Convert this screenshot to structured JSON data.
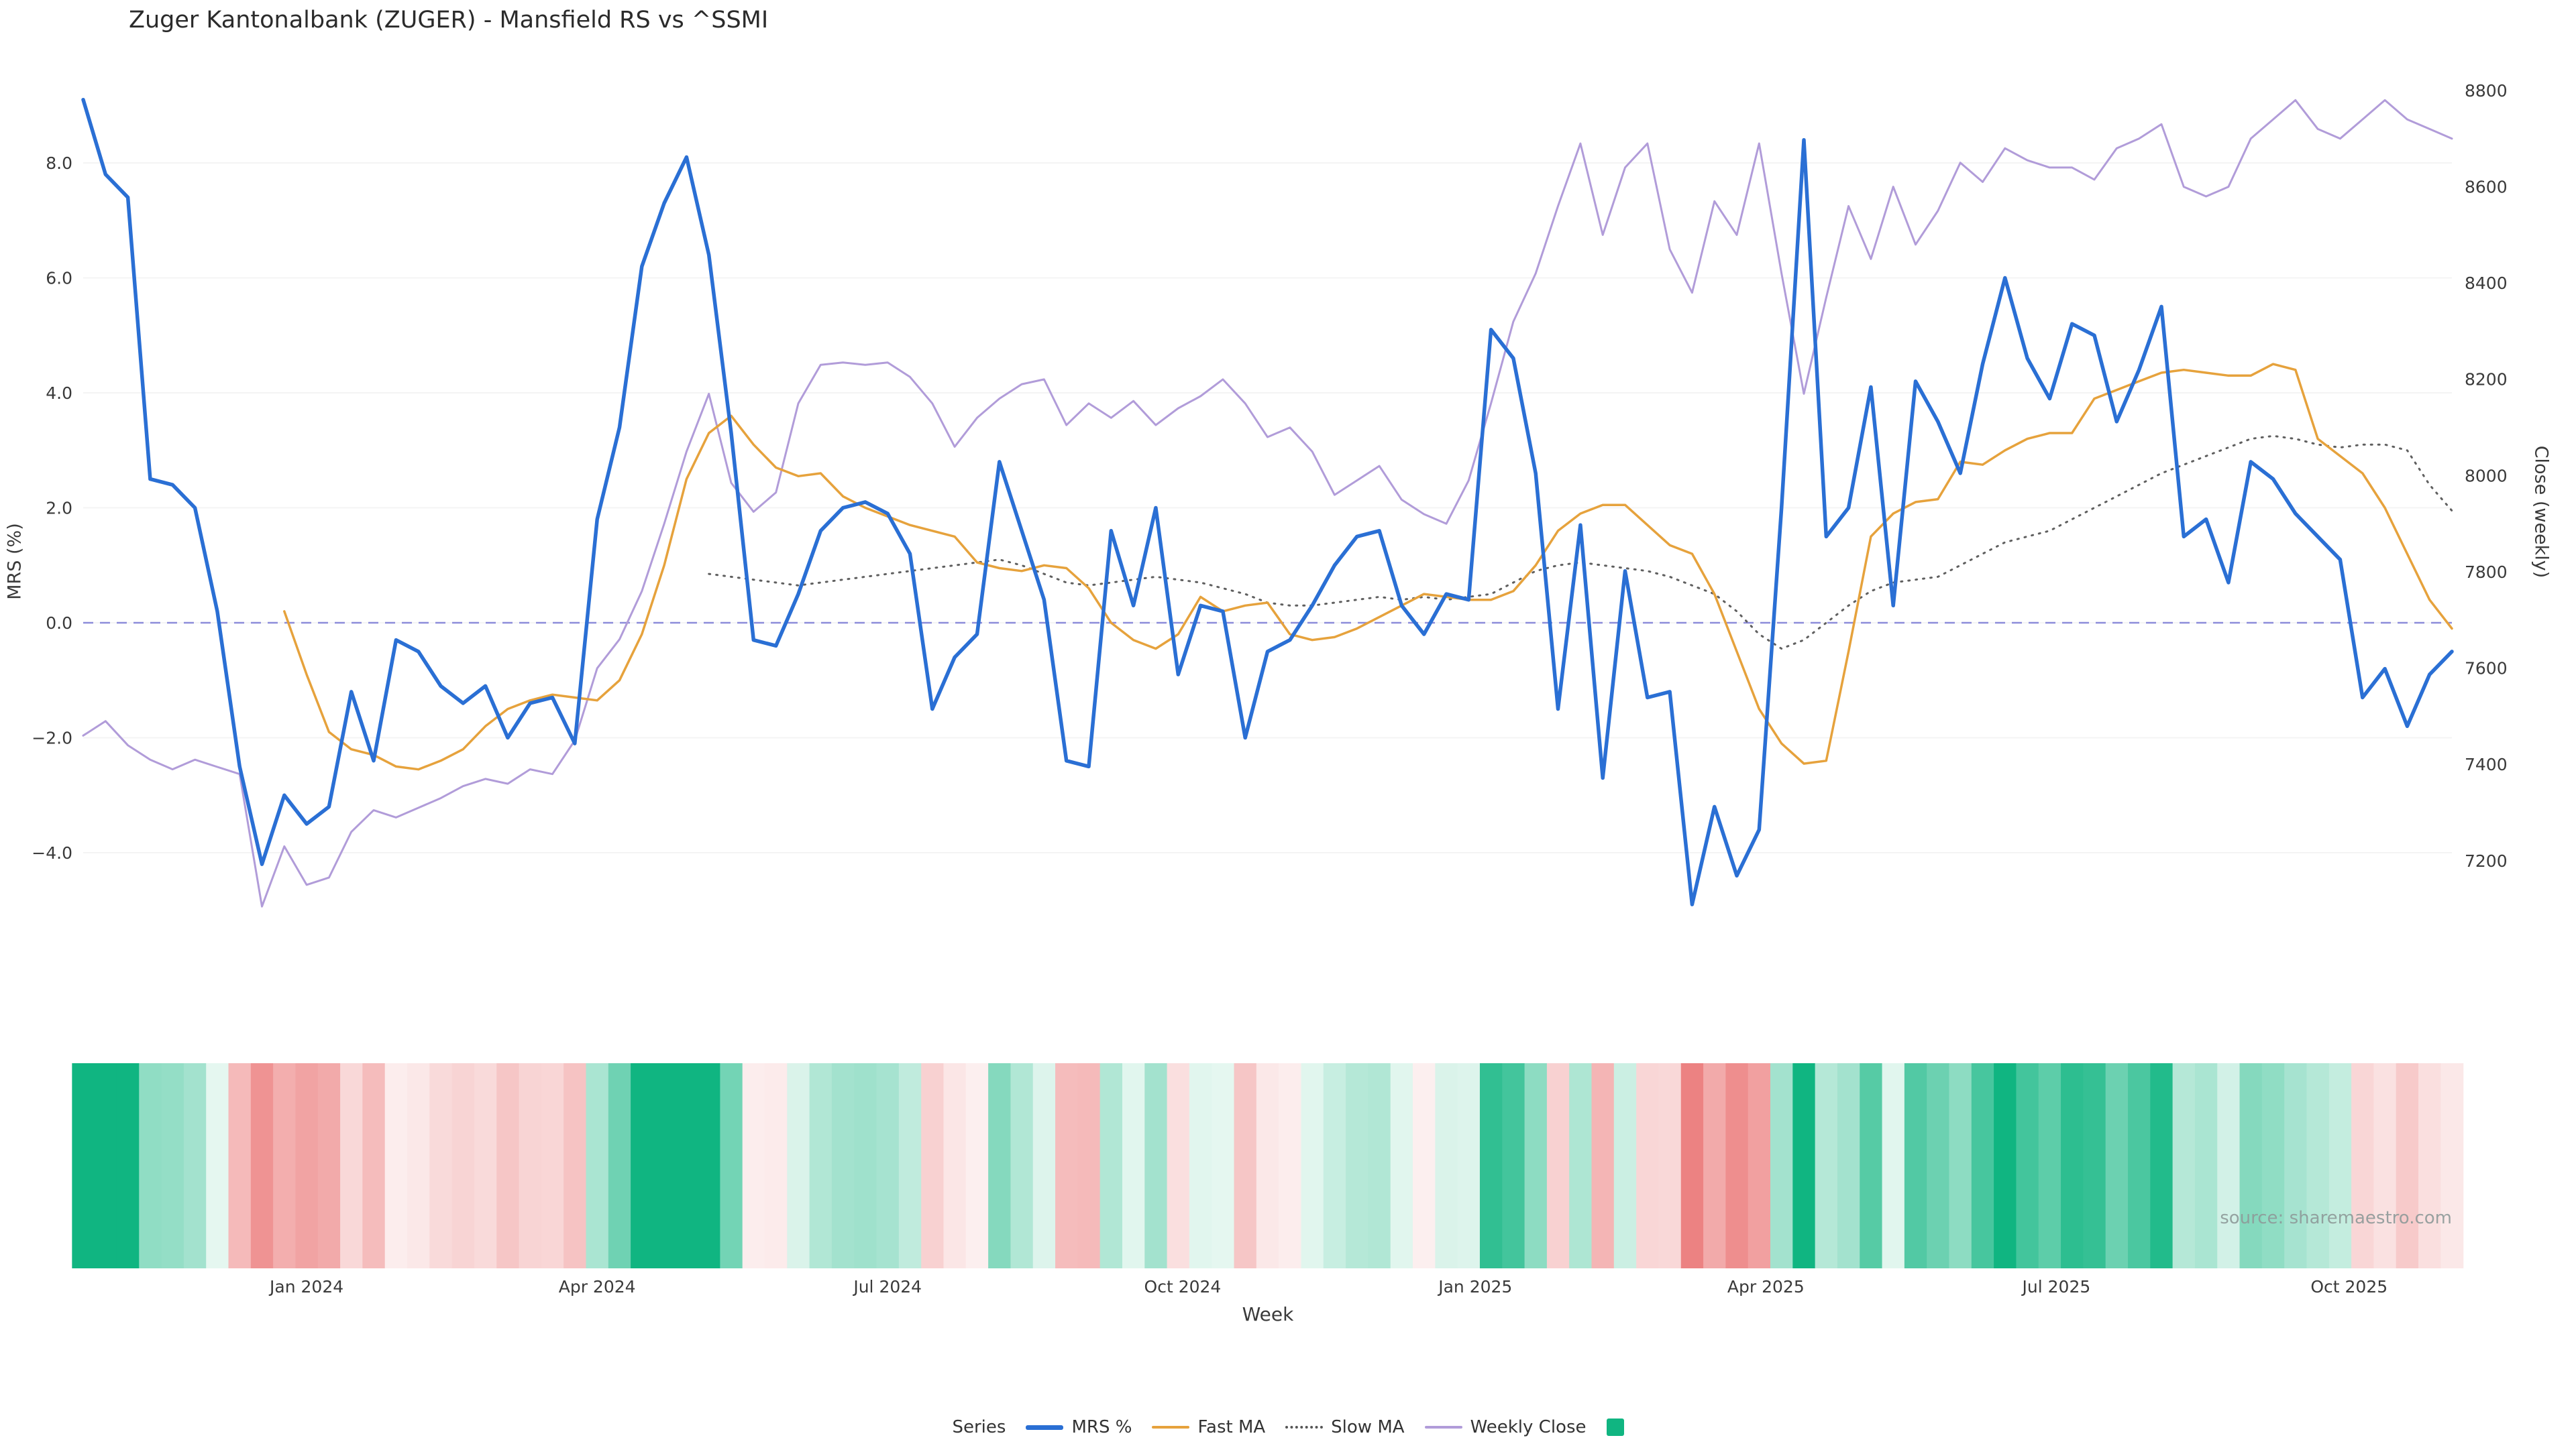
{
  "source_note": "source: sharemaestro.com",
  "legend": {
    "title": "Series",
    "items": [
      {
        "key": "mrs",
        "label": "MRS %",
        "color": "#2a6fd4",
        "style": "line-thick"
      },
      {
        "key": "fast-ma",
        "label": "Fast MA",
        "color": "#e6a23c",
        "style": "line"
      },
      {
        "key": "slow-ma",
        "label": "Slow MA",
        "color": "#555555",
        "style": "dotted"
      },
      {
        "key": "weekly-close",
        "label": "Weekly Close",
        "color": "#b19cd9",
        "style": "line"
      },
      {
        "key": "heatmap",
        "label": "",
        "color": "#10b581",
        "style": "square"
      }
    ]
  },
  "chart_data": {
    "type": "line",
    "title": "Zuger Kantonalbank (ZUGER) - Mansfield RS vs ^SSMI",
    "x_axis": {
      "label": "Week",
      "unit": "week-index",
      "n_points": 107,
      "tick_labels": [
        "Jan 2024",
        "Apr 2024",
        "Jul 2024",
        "Oct 2024",
        "Jan 2025",
        "Apr 2025",
        "Jul 2025",
        "Oct 2025"
      ],
      "tick_week_indices": [
        10,
        23,
        36,
        49.2,
        62.3,
        75.3,
        88.3,
        101.4
      ]
    },
    "y_left": {
      "label": "MRS (%)",
      "ticks": [
        8,
        6,
        4,
        2,
        0,
        -2,
        -4
      ],
      "tick_labels": [
        "8.0",
        "6.0",
        "4.0",
        "2.0",
        "0.0",
        "−2.0",
        "−4.0"
      ],
      "zero_line": 0
    },
    "y_right": {
      "label": "Close (weekly)",
      "ticks": [
        8800,
        8600,
        8400,
        8200,
        8000,
        7800,
        7600,
        7400,
        7200
      ],
      "tick_labels": [
        "8800",
        "8600",
        "8400",
        "8200",
        "8000",
        "7800",
        "7600",
        "7400",
        "7200"
      ]
    },
    "zero_line_color": "#8c8cd9",
    "grid_color": "#f4f4f4",
    "series": [
      {
        "name": "MRS %",
        "axis": "left",
        "color": "#2a6fd4",
        "width": 5.5,
        "dash": "solid",
        "values": [
          9.1,
          7.8,
          7.4,
          2.5,
          2.4,
          2.0,
          0.2,
          -2.5,
          -4.2,
          -3.0,
          -3.5,
          -3.2,
          -1.2,
          -2.4,
          -0.3,
          -0.5,
          -1.1,
          -1.4,
          -1.1,
          -2.0,
          -1.4,
          -1.3,
          -2.1,
          1.8,
          3.4,
          6.2,
          7.3,
          8.1,
          6.4,
          3.3,
          -0.3,
          -0.4,
          0.5,
          1.6,
          2.0,
          2.1,
          1.9,
          1.2,
          -1.5,
          -0.6,
          -0.2,
          2.8,
          1.6,
          0.4,
          -2.4,
          -2.5,
          1.6,
          0.3,
          2.0,
          -0.9,
          0.3,
          0.2,
          -2.0,
          -0.5,
          -0.3,
          0.3,
          1.0,
          1.5,
          1.6,
          0.3,
          -0.2,
          0.5,
          0.4,
          5.1,
          4.6,
          2.6,
          -1.5,
          1.7,
          -2.7,
          0.9,
          -1.3,
          -1.2,
          -4.9,
          -3.2,
          -4.4,
          -3.6,
          2.0,
          8.4,
          1.5,
          2.0,
          4.1,
          0.3,
          4.2,
          3.5,
          2.6,
          4.5,
          6.0,
          4.6,
          3.9,
          5.2,
          5.0,
          3.5,
          4.4,
          5.5,
          1.5,
          1.8,
          0.7,
          2.8,
          2.5,
          1.9,
          1.5,
          1.1,
          -1.3,
          -0.8,
          -1.8,
          -0.9,
          -0.5
        ]
      },
      {
        "name": "Fast MA",
        "axis": "left",
        "color": "#e6a23c",
        "width": 3.5,
        "dash": "solid",
        "values": [
          null,
          null,
          null,
          null,
          null,
          null,
          null,
          null,
          null,
          0.2,
          -0.9,
          -1.9,
          -2.2,
          -2.3,
          -2.5,
          -2.55,
          -2.4,
          -2.2,
          -1.8,
          -1.5,
          -1.35,
          -1.25,
          -1.3,
          -1.35,
          -1.0,
          -0.2,
          1.0,
          2.5,
          3.3,
          3.6,
          3.1,
          2.7,
          2.55,
          2.6,
          2.2,
          2.0,
          1.85,
          1.7,
          1.6,
          1.5,
          1.05,
          0.95,
          0.9,
          1.0,
          0.95,
          0.6,
          0.0,
          -0.3,
          -0.45,
          -0.2,
          0.45,
          0.2,
          0.3,
          0.35,
          -0.2,
          -0.3,
          -0.25,
          -0.1,
          0.1,
          0.3,
          0.5,
          0.45,
          0.4,
          0.4,
          0.55,
          1.0,
          1.6,
          1.9,
          2.05,
          2.05,
          1.7,
          1.35,
          1.2,
          0.5,
          -0.5,
          -1.5,
          -2.1,
          -2.45,
          -2.4,
          -0.5,
          1.5,
          1.9,
          2.1,
          2.15,
          2.8,
          2.75,
          3.0,
          3.2,
          3.3,
          3.3,
          3.9,
          4.05,
          4.2,
          4.35,
          4.4,
          4.35,
          4.3,
          4.3,
          4.5,
          4.4,
          3.2,
          2.9,
          2.6,
          2.0,
          1.2,
          0.4,
          -0.1
        ]
      },
      {
        "name": "Slow MA",
        "axis": "left",
        "color": "#5f5f5f",
        "width": 3,
        "dash": "dotted",
        "values": [
          null,
          null,
          null,
          null,
          null,
          null,
          null,
          null,
          null,
          null,
          null,
          null,
          null,
          null,
          null,
          null,
          null,
          null,
          null,
          null,
          null,
          null,
          null,
          null,
          null,
          null,
          null,
          null,
          0.85,
          0.8,
          0.75,
          0.7,
          0.65,
          0.7,
          0.75,
          0.8,
          0.85,
          0.9,
          0.95,
          1.0,
          1.05,
          1.1,
          1.0,
          0.85,
          0.7,
          0.65,
          0.7,
          0.75,
          0.8,
          0.75,
          0.7,
          0.6,
          0.5,
          0.35,
          0.3,
          0.3,
          0.35,
          0.4,
          0.45,
          0.4,
          0.45,
          0.4,
          0.45,
          0.5,
          0.7,
          0.9,
          1.0,
          1.05,
          1.0,
          0.95,
          0.9,
          0.8,
          0.65,
          0.5,
          0.2,
          -0.2,
          -0.45,
          -0.3,
          0.0,
          0.3,
          0.55,
          0.7,
          0.75,
          0.8,
          1.0,
          1.2,
          1.4,
          1.5,
          1.6,
          1.8,
          2.0,
          2.2,
          2.4,
          2.6,
          2.75,
          2.9,
          3.05,
          3.2,
          3.25,
          3.2,
          3.1,
          3.05,
          3.1,
          3.1,
          3.0,
          2.4,
          1.95
        ]
      },
      {
        "name": "Weekly Close",
        "axis": "right",
        "color": "#b19cd9",
        "width": 3,
        "dash": "solid",
        "values": [
          7460,
          7490,
          7440,
          7410,
          7390,
          7410,
          7395,
          7380,
          7105,
          7230,
          7150,
          7165,
          7260,
          7305,
          7290,
          7310,
          7330,
          7355,
          7370,
          7360,
          7390,
          7380,
          7450,
          7600,
          7660,
          7760,
          7900,
          8050,
          8170,
          7985,
          7925,
          7965,
          8150,
          8230,
          8235,
          8230,
          8235,
          8205,
          8150,
          8060,
          8120,
          8160,
          8190,
          8200,
          8105,
          8150,
          8120,
          8155,
          8105,
          8140,
          8165,
          8200,
          8150,
          8080,
          8100,
          8050,
          7960,
          7990,
          8020,
          7950,
          7920,
          7900,
          7990,
          8150,
          8320,
          8420,
          8560,
          8690,
          8500,
          8640,
          8690,
          8470,
          8380,
          8570,
          8500,
          8690,
          8420,
          8170,
          8370,
          8560,
          8450,
          8600,
          8480,
          8550,
          8650,
          8610,
          8680,
          8655,
          8640,
          8640,
          8615,
          8680,
          8700,
          8730,
          8600,
          8580,
          8600,
          8700,
          8740,
          8780,
          8720,
          8700,
          8740,
          8780,
          8740,
          8720,
          8700
        ]
      }
    ],
    "heatmap": {
      "derived_from": "MRS %",
      "positive_strong_color": "#10b581",
      "negative_strong_color": "#ec8080",
      "neutral_color": "#ffffff",
      "positive_saturation_value": 6,
      "negative_saturation_value": -5
    }
  }
}
